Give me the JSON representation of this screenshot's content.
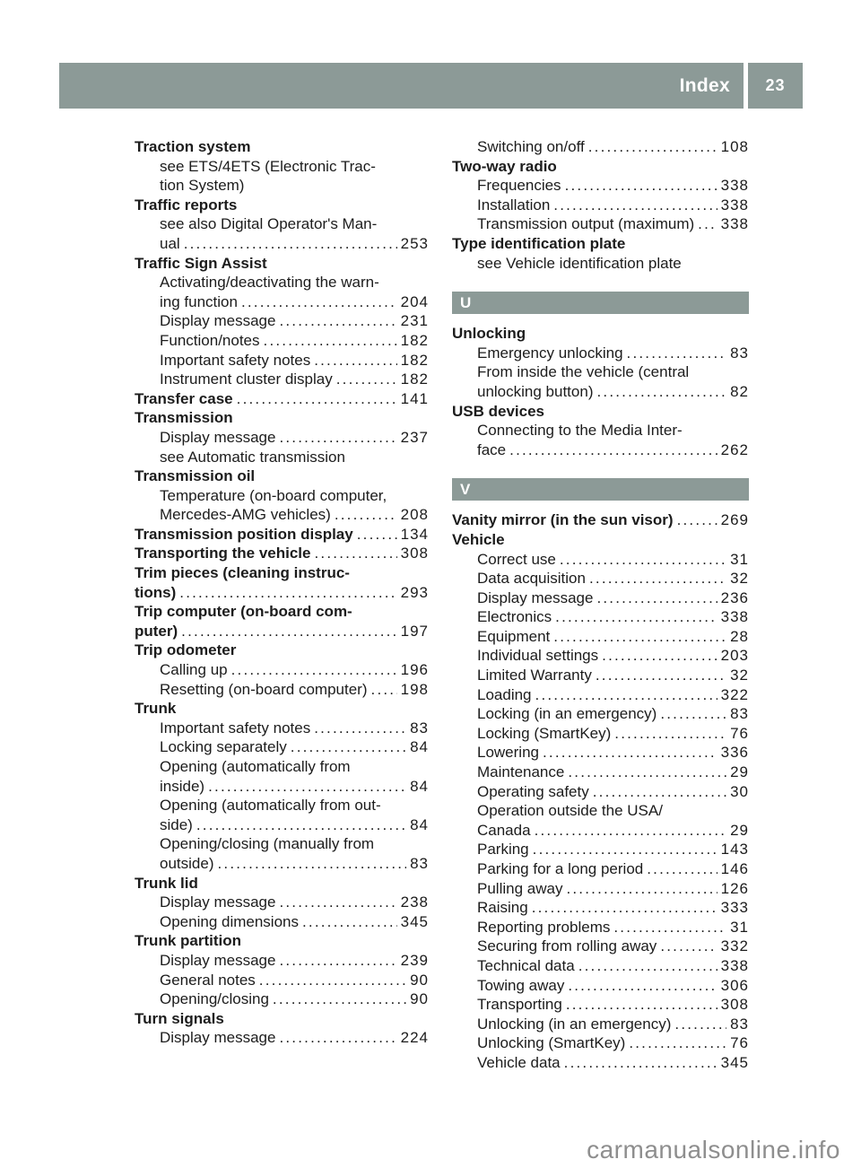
{
  "header": {
    "title": "Index",
    "page_number": "23"
  },
  "colors": {
    "section_bar": "#8C9A97",
    "text": "#1c1c1c",
    "watermark": "#8e8e8e"
  },
  "watermark": "carmanualsonline.info",
  "index": {
    "left_column": [
      {
        "style": "main",
        "lines": [
          "Traction system"
        ]
      },
      {
        "style": "sub",
        "lines": [
          "see ETS/4ETS (Electronic Trac-",
          "tion System)"
        ]
      },
      {
        "style": "main",
        "lines": [
          "Traffic reports"
        ]
      },
      {
        "style": "sub",
        "lines": [
          "see also Digital Operator's Man-",
          "ual"
        ],
        "page": "253"
      },
      {
        "style": "main",
        "lines": [
          "Traffic Sign Assist"
        ]
      },
      {
        "style": "sub",
        "lines": [
          "Activating/deactivating the warn-",
          "ing function"
        ],
        "page": "204"
      },
      {
        "style": "sub",
        "lines": [
          "Display message"
        ],
        "page": "231"
      },
      {
        "style": "sub",
        "lines": [
          "Function/notes"
        ],
        "page": "182"
      },
      {
        "style": "sub",
        "lines": [
          "Important safety notes"
        ],
        "page": "182"
      },
      {
        "style": "sub",
        "lines": [
          "Instrument cluster display"
        ],
        "page": "182"
      },
      {
        "style": "main",
        "lines": [
          "Transfer case"
        ],
        "page": "141"
      },
      {
        "style": "main",
        "lines": [
          "Transmission"
        ]
      },
      {
        "style": "sub",
        "lines": [
          "Display message"
        ],
        "page": "237"
      },
      {
        "style": "sub",
        "lines": [
          "see Automatic transmission"
        ]
      },
      {
        "style": "main",
        "lines": [
          "Transmission oil"
        ]
      },
      {
        "style": "sub",
        "lines": [
          "Temperature (on-board computer,",
          "Mercedes-AMG vehicles)"
        ],
        "page": "208"
      },
      {
        "style": "main",
        "lines": [
          "Transmission position display"
        ],
        "page": "134"
      },
      {
        "style": "main",
        "lines": [
          "Transporting the vehicle"
        ],
        "page": "308"
      },
      {
        "style": "main",
        "lines": [
          "Trim pieces (cleaning instruc-",
          "tions)"
        ],
        "page": "293"
      },
      {
        "style": "main",
        "lines": [
          "Trip computer (on-board com-",
          "puter)"
        ],
        "page": "197"
      },
      {
        "style": "main",
        "lines": [
          "Trip odometer"
        ]
      },
      {
        "style": "sub",
        "lines": [
          "Calling up"
        ],
        "page": "196"
      },
      {
        "style": "sub",
        "lines": [
          "Resetting (on-board computer)"
        ],
        "page": "198"
      },
      {
        "style": "main",
        "lines": [
          "Trunk"
        ]
      },
      {
        "style": "sub",
        "lines": [
          "Important safety notes"
        ],
        "page": "83"
      },
      {
        "style": "sub",
        "lines": [
          "Locking separately"
        ],
        "page": "84"
      },
      {
        "style": "sub",
        "lines": [
          "Opening (automatically from",
          "inside)"
        ],
        "page": "84"
      },
      {
        "style": "sub",
        "lines": [
          "Opening (automatically from out-",
          "side)"
        ],
        "page": "84"
      },
      {
        "style": "sub",
        "lines": [
          "Opening/closing (manually from",
          "outside)"
        ],
        "page": "83"
      },
      {
        "style": "main",
        "lines": [
          "Trunk lid"
        ]
      },
      {
        "style": "sub",
        "lines": [
          "Display message"
        ],
        "page": "238"
      },
      {
        "style": "sub",
        "lines": [
          "Opening dimensions"
        ],
        "page": "345"
      },
      {
        "style": "main",
        "lines": [
          "Trunk partition"
        ]
      },
      {
        "style": "sub",
        "lines": [
          "Display message"
        ],
        "page": "239"
      },
      {
        "style": "sub",
        "lines": [
          "General notes"
        ],
        "page": "90"
      },
      {
        "style": "sub",
        "lines": [
          "Opening/closing"
        ],
        "page": "90"
      },
      {
        "style": "main",
        "lines": [
          "Turn signals"
        ]
      },
      {
        "style": "sub",
        "lines": [
          "Display message"
        ],
        "page": "224"
      }
    ],
    "right_column": [
      {
        "style": "sub",
        "lines": [
          "Switching on/off"
        ],
        "page": "108"
      },
      {
        "style": "main",
        "lines": [
          "Two-way radio"
        ]
      },
      {
        "style": "sub",
        "lines": [
          "Frequencies"
        ],
        "page": "338"
      },
      {
        "style": "sub",
        "lines": [
          "Installation"
        ],
        "page": "338"
      },
      {
        "style": "sub",
        "lines": [
          "Transmission output (maximum)"
        ],
        "page": "338"
      },
      {
        "style": "main",
        "lines": [
          "Type identification plate"
        ]
      },
      {
        "style": "sub",
        "lines": [
          "see Vehicle identification plate"
        ]
      },
      {
        "style": "section",
        "letter": "U"
      },
      {
        "style": "main",
        "lines": [
          "Unlocking"
        ]
      },
      {
        "style": "sub",
        "lines": [
          "Emergency unlocking"
        ],
        "page": "83"
      },
      {
        "style": "sub",
        "lines": [
          "From inside the vehicle (central",
          "unlocking button)"
        ],
        "page": "82"
      },
      {
        "style": "main",
        "lines": [
          "USB devices"
        ]
      },
      {
        "style": "sub",
        "lines": [
          "Connecting to the Media Inter-",
          "face"
        ],
        "page": "262"
      },
      {
        "style": "section",
        "letter": "V"
      },
      {
        "style": "main",
        "lines": [
          "Vanity mirror (in the sun visor)"
        ],
        "page": "269"
      },
      {
        "style": "main",
        "lines": [
          "Vehicle"
        ]
      },
      {
        "style": "sub",
        "lines": [
          "Correct use"
        ],
        "page": "31"
      },
      {
        "style": "sub",
        "lines": [
          "Data acquisition"
        ],
        "page": "32"
      },
      {
        "style": "sub",
        "lines": [
          "Display message"
        ],
        "page": "236"
      },
      {
        "style": "sub",
        "lines": [
          "Electronics"
        ],
        "page": "338"
      },
      {
        "style": "sub",
        "lines": [
          "Equipment"
        ],
        "page": "28"
      },
      {
        "style": "sub",
        "lines": [
          "Individual settings"
        ],
        "page": "203"
      },
      {
        "style": "sub",
        "lines": [
          "Limited Warranty"
        ],
        "page": "32"
      },
      {
        "style": "sub",
        "lines": [
          "Loading"
        ],
        "page": "322"
      },
      {
        "style": "sub",
        "lines": [
          "Locking (in an emergency)"
        ],
        "page": "83"
      },
      {
        "style": "sub",
        "lines": [
          "Locking (SmartKey)"
        ],
        "page": "76"
      },
      {
        "style": "sub",
        "lines": [
          "Lowering"
        ],
        "page": "336"
      },
      {
        "style": "sub",
        "lines": [
          "Maintenance"
        ],
        "page": "29"
      },
      {
        "style": "sub",
        "lines": [
          "Operating safety"
        ],
        "page": "30"
      },
      {
        "style": "sub",
        "lines": [
          "Operation outside the USA/",
          "Canada"
        ],
        "page": "29"
      },
      {
        "style": "sub",
        "lines": [
          "Parking"
        ],
        "page": "143"
      },
      {
        "style": "sub",
        "lines": [
          "Parking for a long period"
        ],
        "page": "146"
      },
      {
        "style": "sub",
        "lines": [
          "Pulling away"
        ],
        "page": "126"
      },
      {
        "style": "sub",
        "lines": [
          "Raising"
        ],
        "page": "333"
      },
      {
        "style": "sub",
        "lines": [
          "Reporting problems"
        ],
        "page": "31"
      },
      {
        "style": "sub",
        "lines": [
          "Securing from rolling away"
        ],
        "page": "332"
      },
      {
        "style": "sub",
        "lines": [
          "Technical data"
        ],
        "page": "338"
      },
      {
        "style": "sub",
        "lines": [
          "Towing away"
        ],
        "page": "306"
      },
      {
        "style": "sub",
        "lines": [
          "Transporting"
        ],
        "page": "308"
      },
      {
        "style": "sub",
        "lines": [
          "Unlocking (in an emergency)"
        ],
        "page": "83"
      },
      {
        "style": "sub",
        "lines": [
          "Unlocking (SmartKey)"
        ],
        "page": "76"
      },
      {
        "style": "sub",
        "lines": [
          "Vehicle data"
        ],
        "page": "345"
      }
    ]
  }
}
